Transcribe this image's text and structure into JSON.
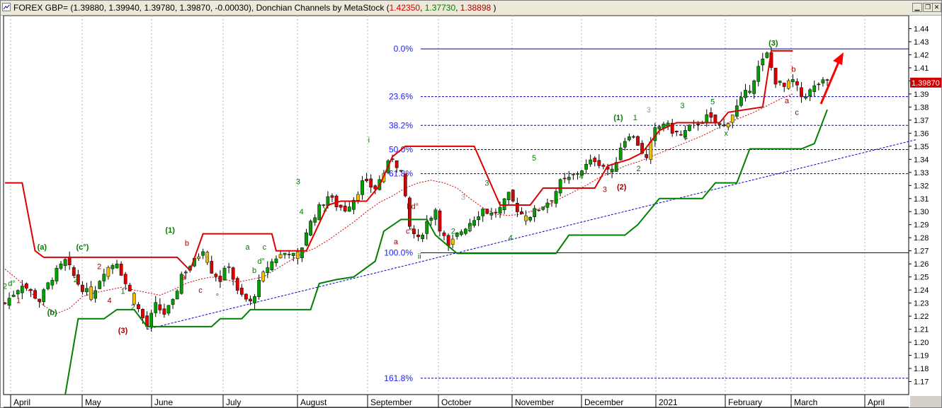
{
  "window": {
    "title_prefix": "FOREX GBP= (1.39880, 1.39940, 1.39780, 1.39870, -0.00030), Donchian Channels by MetaStock (",
    "dc_upper": "1.42350",
    "dc_lower": "1.37730",
    "dc_mid": "1.38898",
    "title_suffix": " )",
    "minimize_icon": "minimize-icon",
    "restore_icon": "restore-icon",
    "close_icon": "close-icon"
  },
  "colors": {
    "upper_channel": "#dd0000",
    "lower_channel": "#008000",
    "fib_lines": "#0000aa",
    "trendline": "#0000cc",
    "ma": "#cc0000",
    "up_candle": "#00a000",
    "down_candle": "#dd0000",
    "neutral_candle": "#f0c000",
    "price_marker": "#cc0000",
    "arrow": "#ff0000"
  },
  "chart_data": {
    "type": "candlestick",
    "instrument": "FOREX GBP=",
    "indicator": "Donchian Channels by MetaStock",
    "ylim": [
      1.16,
      1.45
    ],
    "y_ticks": [
      "1.44",
      "1.43",
      "1.42",
      "1.41",
      "1.40",
      "1.39",
      "1.38",
      "1.37",
      "1.36",
      "1.35",
      "1.34",
      "1.33",
      "1.32",
      "1.31",
      "1.30",
      "1.29",
      "1.28",
      "1.27",
      "1.26",
      "1.25",
      "1.24",
      "1.23",
      "1.22",
      "1.21",
      "1.20",
      "1.19",
      "1.18",
      "1.17"
    ],
    "x_months": [
      "April",
      "May",
      "June",
      "July",
      "August",
      "September",
      "October",
      "November",
      "December",
      "2021",
      "February",
      "March",
      "April"
    ],
    "current_price": "1.39870",
    "grid": true,
    "fib_levels": [
      {
        "label": "0.0%",
        "value": 1.4245
      },
      {
        "label": "23.6%",
        "value": 1.388
      },
      {
        "label": "38.2%",
        "value": 1.366
      },
      {
        "label": "50.0%",
        "value": 1.3475
      },
      {
        "label": "61.8%",
        "value": 1.329
      },
      {
        "label": "100.0%",
        "value": 1.2685
      },
      {
        "label": "161.8%",
        "value": 1.1725
      }
    ],
    "close_path": [
      [
        0,
        1.23
      ],
      [
        4,
        1.245
      ],
      [
        8,
        1.232
      ],
      [
        11,
        1.25
      ],
      [
        14,
        1.262
      ],
      [
        17,
        1.245
      ],
      [
        20,
        1.235
      ],
      [
        23,
        1.255
      ],
      [
        26,
        1.262
      ],
      [
        28,
        1.245
      ],
      [
        31,
        1.225
      ],
      [
        33,
        1.212
      ],
      [
        35,
        1.228
      ],
      [
        37,
        1.222
      ],
      [
        39,
        1.23
      ],
      [
        41,
        1.252
      ],
      [
        44,
        1.262
      ],
      [
        46,
        1.272
      ],
      [
        48,
        1.255
      ],
      [
        50,
        1.248
      ],
      [
        52,
        1.26
      ],
      [
        54,
        1.238
      ],
      [
        57,
        1.23
      ],
      [
        59,
        1.245
      ],
      [
        61,
        1.258
      ],
      [
        63,
        1.265
      ],
      [
        66,
        1.27
      ],
      [
        68,
        1.262
      ],
      [
        70,
        1.285
      ],
      [
        72,
        1.298
      ],
      [
        75,
        1.312
      ],
      [
        77,
        1.305
      ],
      [
        79,
        1.302
      ],
      [
        81,
        1.31
      ],
      [
        83,
        1.322
      ],
      [
        86,
        1.318
      ],
      [
        88,
        1.33
      ],
      [
        90,
        1.342
      ],
      [
        92,
        1.33
      ],
      [
        94,
        1.288
      ],
      [
        96,
        1.278
      ],
      [
        98,
        1.292
      ],
      [
        100,
        1.302
      ],
      [
        101,
        1.288
      ],
      [
        103,
        1.272
      ],
      [
        105,
        1.282
      ],
      [
        108,
        1.292
      ],
      [
        111,
        1.302
      ],
      [
        113,
        1.298
      ],
      [
        115,
        1.302
      ],
      [
        117,
        1.312
      ],
      [
        119,
        1.302
      ],
      [
        121,
        1.295
      ],
      [
        123,
        1.3
      ],
      [
        125,
        1.305
      ],
      [
        127,
        1.31
      ],
      [
        129,
        1.322
      ],
      [
        131,
        1.325
      ],
      [
        133,
        1.33
      ],
      [
        135,
        1.335
      ],
      [
        137,
        1.34
      ],
      [
        139,
        1.335
      ],
      [
        141,
        1.33
      ],
      [
        143,
        1.35
      ],
      [
        145,
        1.36
      ],
      [
        147,
        1.352
      ],
      [
        149,
        1.34
      ],
      [
        151,
        1.362
      ],
      [
        153,
        1.368
      ],
      [
        155,
        1.362
      ],
      [
        157,
        1.358
      ],
      [
        159,
        1.364
      ],
      [
        161,
        1.368
      ],
      [
        163,
        1.372
      ],
      [
        165,
        1.368
      ],
      [
        167,
        1.365
      ],
      [
        169,
        1.375
      ],
      [
        171,
        1.385
      ],
      [
        173,
        1.395
      ],
      [
        175,
        1.41
      ],
      [
        177,
        1.42
      ],
      [
        179,
        1.4
      ],
      [
        181,
        1.395
      ],
      [
        183,
        1.4
      ],
      [
        185,
        1.388
      ],
      [
        187,
        1.392
      ],
      [
        189,
        1.398
      ],
      [
        191,
        1.3987
      ]
    ],
    "upper_channel": [
      [
        0,
        1.322
      ],
      [
        4,
        1.322
      ],
      [
        7,
        1.27
      ],
      [
        9,
        1.265
      ],
      [
        40,
        1.265
      ],
      [
        43,
        1.255
      ],
      [
        46,
        1.283
      ],
      [
        62,
        1.283
      ],
      [
        63,
        1.27
      ],
      [
        70,
        1.27
      ],
      [
        75,
        1.305
      ],
      [
        78,
        1.308
      ],
      [
        84,
        1.308
      ],
      [
        87,
        1.32
      ],
      [
        90,
        1.342
      ],
      [
        93,
        1.35
      ],
      [
        109,
        1.35
      ],
      [
        113,
        1.32
      ],
      [
        115,
        1.305
      ],
      [
        122,
        1.305
      ],
      [
        125,
        1.318
      ],
      [
        137,
        1.318
      ],
      [
        140,
        1.335
      ],
      [
        145,
        1.34
      ],
      [
        148,
        1.345
      ],
      [
        152,
        1.362
      ],
      [
        156,
        1.368
      ],
      [
        166,
        1.368
      ],
      [
        168,
        1.376
      ],
      [
        176,
        1.38
      ],
      [
        178,
        1.423
      ],
      [
        183,
        1.423
      ]
    ],
    "lower_channel": [
      [
        14,
        1.16
      ],
      [
        17,
        1.218
      ],
      [
        23,
        1.218
      ],
      [
        26,
        1.225
      ],
      [
        30,
        1.225
      ],
      [
        33,
        1.212
      ],
      [
        48,
        1.212
      ],
      [
        50,
        1.218
      ],
      [
        55,
        1.218
      ],
      [
        57,
        1.225
      ],
      [
        71,
        1.225
      ],
      [
        73,
        1.245
      ],
      [
        77,
        1.248
      ],
      [
        81,
        1.25
      ],
      [
        86,
        1.262
      ],
      [
        88,
        1.285
      ],
      [
        92,
        1.294
      ],
      [
        98,
        1.294
      ],
      [
        100,
        1.282
      ],
      [
        105,
        1.268
      ],
      [
        128,
        1.268
      ],
      [
        131,
        1.282
      ],
      [
        144,
        1.282
      ],
      [
        147,
        1.29
      ],
      [
        152,
        1.31
      ],
      [
        162,
        1.31
      ],
      [
        165,
        1.322
      ],
      [
        170,
        1.322
      ],
      [
        173,
        1.348
      ],
      [
        185,
        1.348
      ],
      [
        188,
        1.352
      ],
      [
        191,
        1.378
      ]
    ],
    "moving_average": [
      [
        0,
        1.256
      ],
      [
        3,
        1.248
      ],
      [
        6,
        1.238
      ],
      [
        9,
        1.228
      ],
      [
        12,
        1.222
      ],
      [
        15,
        1.226
      ],
      [
        18,
        1.235
      ],
      [
        21,
        1.238
      ],
      [
        24,
        1.24
      ],
      [
        27,
        1.242
      ],
      [
        30,
        1.24
      ],
      [
        33,
        1.238
      ],
      [
        36,
        1.236
      ],
      [
        39,
        1.24
      ],
      [
        42,
        1.245
      ],
      [
        45,
        1.248
      ],
      [
        48,
        1.25
      ],
      [
        51,
        1.248
      ],
      [
        54,
        1.246
      ],
      [
        57,
        1.248
      ],
      [
        60,
        1.25
      ],
      [
        63,
        1.256
      ],
      [
        66,
        1.262
      ],
      [
        69,
        1.268
      ],
      [
        72,
        1.272
      ],
      [
        75,
        1.278
      ],
      [
        78,
        1.285
      ],
      [
        81,
        1.292
      ],
      [
        84,
        1.3
      ],
      [
        87,
        1.307
      ],
      [
        90,
        1.312
      ],
      [
        93,
        1.318
      ],
      [
        96,
        1.322
      ],
      [
        99,
        1.324
      ],
      [
        102,
        1.322
      ],
      [
        105,
        1.318
      ],
      [
        108,
        1.31
      ],
      [
        111,
        1.303
      ],
      [
        114,
        1.298
      ],
      [
        117,
        1.297
      ],
      [
        120,
        1.298
      ],
      [
        123,
        1.301
      ],
      [
        126,
        1.305
      ],
      [
        129,
        1.31
      ],
      [
        132,
        1.315
      ],
      [
        135,
        1.32
      ],
      [
        138,
        1.326
      ],
      [
        141,
        1.33
      ],
      [
        144,
        1.335
      ],
      [
        147,
        1.338
      ],
      [
        150,
        1.342
      ],
      [
        153,
        1.346
      ],
      [
        156,
        1.35
      ],
      [
        159,
        1.354
      ],
      [
        162,
        1.358
      ],
      [
        165,
        1.363
      ],
      [
        168,
        1.368
      ],
      [
        171,
        1.372
      ],
      [
        174,
        1.376
      ],
      [
        177,
        1.381
      ],
      [
        180,
        1.386
      ],
      [
        183,
        1.39
      ]
    ],
    "trendline": [
      [
        33,
        1.21
      ],
      [
        205,
        1.355
      ]
    ],
    "wave_labels": [
      {
        "t": "(a)",
        "i": 11,
        "v": 1.271,
        "c": "g"
      },
      {
        "t": "(b)",
        "i": 14,
        "v": 1.221,
        "c": "g"
      },
      {
        "t": "(c°)",
        "i": 23,
        "v": 1.271,
        "c": "g"
      },
      {
        "t": "(3)",
        "i": 35,
        "v": 1.207,
        "c": "r"
      },
      {
        "t": "(1)",
        "i": 49,
        "v": 1.284,
        "c": "g"
      },
      {
        "t": "b",
        "i": 54,
        "v": 1.274,
        "c": "r"
      },
      {
        "t": "a",
        "i": 53,
        "v": 1.248,
        "c": "r"
      },
      {
        "t": "c",
        "i": 58,
        "v": 1.238,
        "c": "r"
      },
      {
        "t": "4",
        "i": 60,
        "v": 1.262,
        "c": "gr"
      },
      {
        "t": "1",
        "i": 4,
        "v": 1.23,
        "c": "r"
      },
      {
        "t": "2",
        "i": 0,
        "v": 1.241,
        "c": "g"
      },
      {
        "t": "d°",
        "i": 2,
        "v": 1.243,
        "c": "g"
      },
      {
        "t": "2",
        "i": 21,
        "v": 1.246,
        "c": "g"
      },
      {
        "t": "2",
        "i": 28,
        "v": 1.256,
        "c": "r"
      },
      {
        "t": "1",
        "i": 35,
        "v": 1.237,
        "c": "g"
      },
      {
        "t": "2",
        "i": 38,
        "v": 1.225,
        "c": "g"
      },
      {
        "t": "4",
        "i": 31,
        "v": 1.23,
        "c": "r"
      },
      {
        "t": "°",
        "i": 63,
        "v": 1.233,
        "c": "g"
      },
      {
        "t": "a",
        "i": 72,
        "v": 1.271,
        "c": "g"
      },
      {
        "t": "c",
        "i": 77,
        "v": 1.271,
        "c": "g"
      },
      {
        "t": "b",
        "i": 74,
        "v": 1.253,
        "c": "g"
      },
      {
        "t": "d°",
        "i": 76,
        "v": 1.26,
        "c": "g"
      },
      {
        "t": "3",
        "i": 87,
        "v": 1.321,
        "c": "g"
      },
      {
        "t": "4",
        "i": 88,
        "v": 1.298,
        "c": "g"
      },
      {
        "t": "x",
        "i": 95,
        "v": 1.3,
        "c": "g"
      },
      {
        "t": "i",
        "i": 108,
        "v": 1.353,
        "c": "g"
      },
      {
        "t": "bd°",
        "i": 121,
        "v": 1.302,
        "c": "r"
      },
      {
        "t": "c°",
        "i": 120,
        "v": 1.283,
        "c": "r"
      },
      {
        "t": "a",
        "i": 116,
        "v": 1.275,
        "c": "r"
      },
      {
        "t": "ii",
        "i": 123,
        "v": 1.264,
        "c": "g"
      },
      {
        "t": "3",
        "i": 136,
        "v": 1.309,
        "c": "gr"
      },
      {
        "t": "3",
        "i": 143,
        "v": 1.32,
        "c": "g"
      },
      {
        "t": "2",
        "i": 133,
        "v": 1.283,
        "c": "g"
      },
      {
        "t": "4",
        "i": 138,
        "v": 1.285,
        "c": "gr"
      },
      {
        "t": "4",
        "i": 150,
        "v": 1.278,
        "c": "g"
      },
      {
        "t": "5",
        "i": 157,
        "v": 1.339,
        "c": "g"
      },
      {
        "t": "4",
        "i": 171,
        "v": 1.325,
        "c": "g"
      },
      {
        "t": "3",
        "i": 178,
        "v": 1.315,
        "c": "r"
      },
      {
        "t": "(1)",
        "i": 182,
        "v": 1.37,
        "c": "g"
      },
      {
        "t": "1",
        "i": 187,
        "v": 1.37,
        "c": "g"
      },
      {
        "t": "3",
        "i": 191,
        "v": 1.376,
        "c": "gr"
      },
      {
        "t": "2",
        "i": 188,
        "v": 1.331,
        "c": "g"
      },
      {
        "t": "(2)",
        "i": 183,
        "v": 1.317,
        "c": "r"
      },
      {
        "t": "3",
        "i": 201,
        "v": 1.379,
        "c": "g"
      },
      {
        "t": "4",
        "i": 202,
        "v": 1.355,
        "c": "g"
      },
      {
        "t": "5",
        "i": 210,
        "v": 1.382,
        "c": "g"
      },
      {
        "t": "x",
        "i": 214,
        "v": 1.358,
        "c": "g"
      },
      {
        "t": "(3)",
        "i": 228,
        "v": 1.427,
        "c": "g"
      },
      {
        "t": "b",
        "i": 234,
        "v": 1.407,
        "c": "r"
      },
      {
        "t": "a",
        "i": 232,
        "v": 1.383,
        "c": "r"
      },
      {
        "t": "c",
        "i": 235,
        "v": 1.374,
        "c": "r"
      }
    ]
  }
}
